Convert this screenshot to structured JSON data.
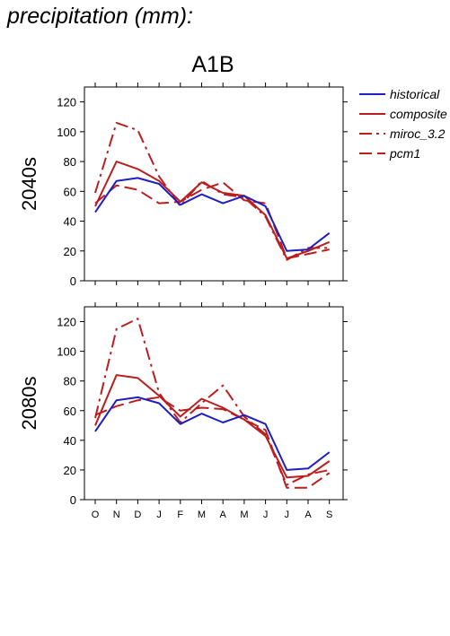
{
  "page": {
    "title": "precipitation (mm):"
  },
  "chart_data": {
    "type": "line",
    "title": "A1B",
    "categories": [
      "O",
      "N",
      "D",
      "J",
      "F",
      "M",
      "A",
      "M",
      "J",
      "J",
      "A",
      "S"
    ],
    "ylim": [
      0,
      130
    ],
    "yticks": [
      0,
      20,
      40,
      60,
      80,
      100,
      120
    ],
    "legend": {
      "placement": "right",
      "entries": [
        {
          "name": "historical",
          "color": "#1f1fbf",
          "dash": "solid"
        },
        {
          "name": "composite",
          "color": "#bb1e1e",
          "dash": "solid"
        },
        {
          "name": "miroc_3.2",
          "color": "#bb1e1e",
          "dash": "dashdot"
        },
        {
          "name": "pcm1",
          "color": "#bb1e1e",
          "dash": "dashed"
        }
      ]
    },
    "panels": [
      {
        "label": "2040s",
        "series": [
          {
            "name": "historical",
            "values": [
              46,
              67,
              69,
              65,
              51,
              58,
              52,
              57,
              50,
              20,
              21,
              32
            ]
          },
          {
            "name": "composite",
            "values": [
              50,
              80,
              75,
              67,
              53,
              66,
              59,
              57,
              44,
              15,
              20,
              26
            ]
          },
          {
            "name": "miroc_3.2",
            "values": [
              59,
              106,
              101,
              70,
              50,
              67,
              58,
              56,
              43,
              14,
              22,
              22
            ]
          },
          {
            "name": "pcm1",
            "values": [
              52,
              64,
              61,
              52,
              53,
              61,
              66,
              54,
              52,
              15,
              18,
              21
            ]
          }
        ]
      },
      {
        "label": "2080s",
        "series": [
          {
            "name": "historical",
            "values": [
              46,
              67,
              69,
              65,
              51,
              58,
              52,
              57,
              51,
              20,
              21,
              32
            ]
          },
          {
            "name": "composite",
            "values": [
              50,
              84,
              82,
              70,
              56,
              68,
              62,
              54,
              43,
              15,
              16,
              26
            ]
          },
          {
            "name": "miroc_3.2",
            "values": [
              55,
              115,
              122,
              72,
              52,
              65,
              77,
              56,
              44,
              10,
              17,
              20
            ]
          },
          {
            "name": "pcm1",
            "values": [
              57,
              63,
              67,
              69,
              60,
              62,
              61,
              54,
              47,
              8,
              8,
              18
            ]
          }
        ]
      }
    ]
  }
}
